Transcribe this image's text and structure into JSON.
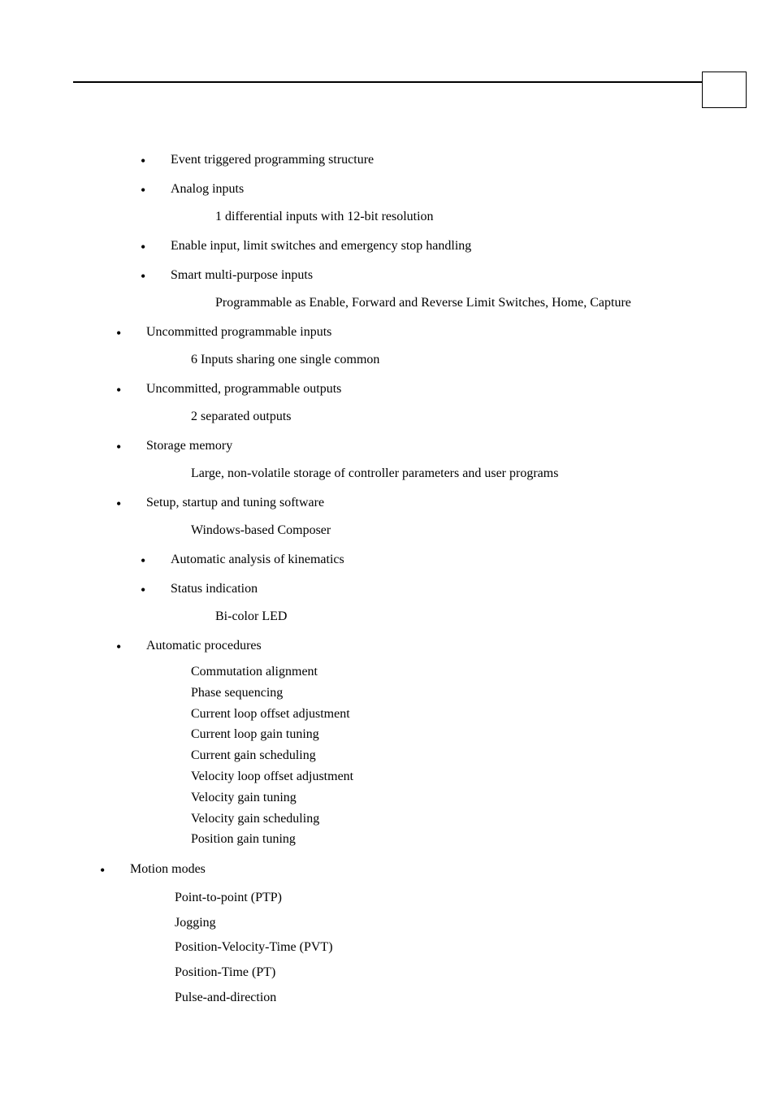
{
  "items": [
    {
      "text": "Event triggered programming structure",
      "indent": "indented-1"
    },
    {
      "text": "Analog inputs",
      "indent": "indented-1",
      "sub": "1 differential inputs with 12-bit resolution"
    },
    {
      "text": "Enable input, limit switches and emergency stop handling",
      "indent": "indented-1"
    },
    {
      "text": "Smart multi-purpose inputs",
      "indent": "indented-1",
      "sub": "Programmable as Enable, Forward and  Reverse Limit Switches, Home, Capture"
    },
    {
      "text": "Uncommitted programmable inputs",
      "indent": "out-1",
      "sub": "6 Inputs sharing one single common"
    },
    {
      "text": "Uncommitted, programmable outputs",
      "indent": "out-1",
      "sub": "2 separated outputs"
    },
    {
      "text": "Storage memory",
      "indent": "out-1",
      "sub": "Large, non-volatile storage of controller parameters and user programs"
    },
    {
      "text": "Setup, startup and tuning software",
      "indent": "out-1",
      "sub": "Windows-based Composer"
    },
    {
      "text": "Automatic analysis of kinematics",
      "indent": "indented-1"
    },
    {
      "text": "Status indication",
      "indent": "indented-1",
      "sub": "Bi-color LED"
    },
    {
      "text": "Automatic procedures",
      "indent": "out-1",
      "sublist": [
        "Commutation alignment",
        "Phase sequencing",
        "Current loop offset adjustment",
        "Current loop gain tuning",
        "Current gain scheduling",
        "Velocity loop offset adjustment",
        "Velocity gain tuning",
        "Velocity gain scheduling",
        "Position gain tuning"
      ]
    },
    {
      "text": "Motion modes",
      "indent": "out-2",
      "motionlist": [
        "Point-to-point (PTP)",
        "Jogging",
        "Position-Velocity-Time (PVT)",
        "Position-Time (PT)",
        "Pulse-and-direction"
      ]
    }
  ],
  "fonts": {
    "body_size": 16,
    "body_family": "Palatino Linotype, Book Antiqua, Palatino, serif"
  },
  "colors": {
    "background": "#ffffff",
    "text": "#000000",
    "line": "#000000"
  }
}
